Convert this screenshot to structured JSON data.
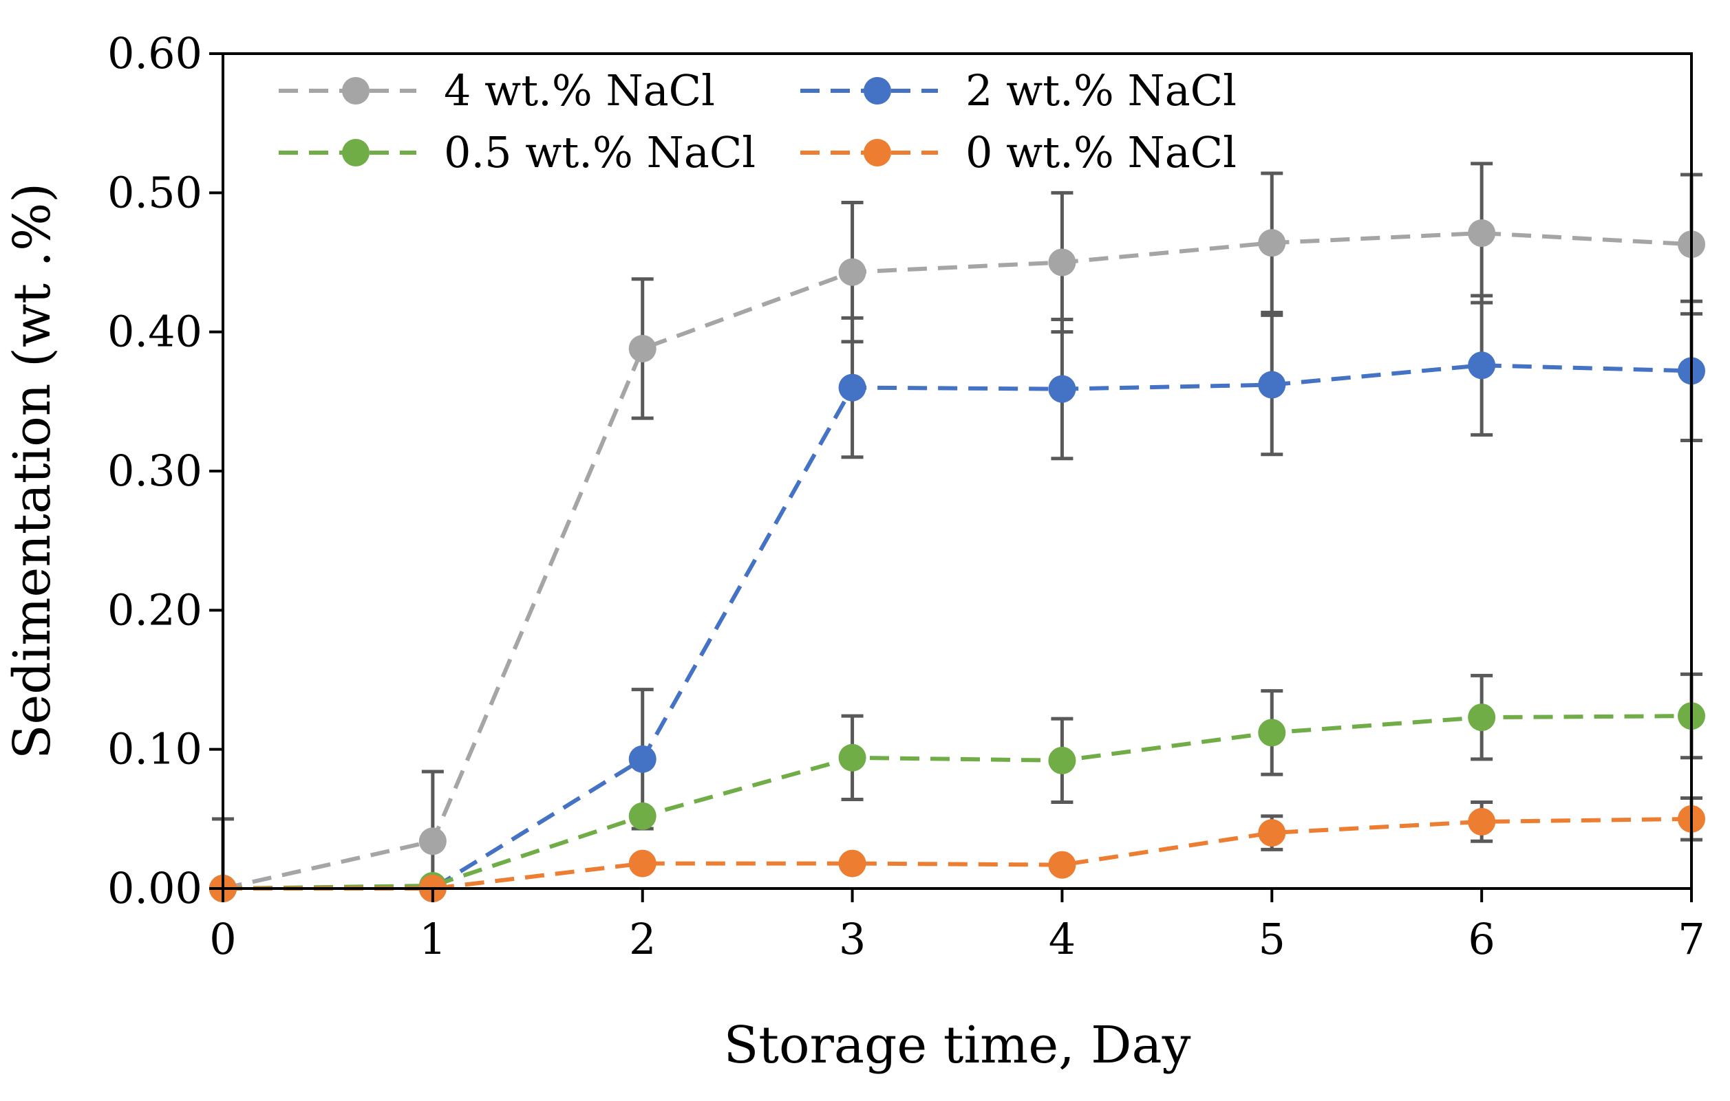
{
  "chart_data": {
    "type": "line",
    "title": "",
    "xlabel": "Storage time, Day",
    "ylabel": "Sedimentation (wt .%)",
    "xlim": [
      0,
      7
    ],
    "ylim": [
      0,
      0.6
    ],
    "x": [
      0,
      1,
      2,
      3,
      4,
      5,
      6,
      7
    ],
    "x_tick_labels": [
      "0",
      "1",
      "2",
      "3",
      "4",
      "5",
      "6",
      "7"
    ],
    "y_tick_values": [
      0,
      0.1,
      0.2,
      0.3,
      0.4,
      0.5,
      0.6
    ],
    "y_tick_labels": [
      "0.00",
      "0.10",
      "0.20",
      "0.30",
      "0.40",
      "0.50",
      "0.60"
    ],
    "grid": false,
    "legend_position": "top-left",
    "series": [
      {
        "name": "4 wt.% NaCl",
        "color": "#A5A5A5",
        "values": [
          0.0,
          0.034,
          0.388,
          0.443,
          0.45,
          0.464,
          0.471,
          0.463
        ],
        "error": [
          0.05,
          0.05,
          0.05,
          0.05,
          0.05,
          0.05,
          0.05,
          0.05
        ]
      },
      {
        "name": "2 wt.% NaCl",
        "color": "#4472C4",
        "values": [
          0.0,
          0.0,
          0.093,
          0.36,
          0.359,
          0.362,
          0.376,
          0.372
        ],
        "error": [
          0.0,
          0.0,
          0.05,
          0.05,
          0.05,
          0.05,
          0.05,
          0.05
        ]
      },
      {
        "name": "0.5 wt.% NaCl",
        "color": "#70AD47",
        "values": [
          0.0,
          0.002,
          0.052,
          0.094,
          0.092,
          0.112,
          0.123,
          0.124
        ],
        "error": [
          0.0,
          0.0,
          0.0,
          0.03,
          0.03,
          0.03,
          0.03,
          0.03
        ]
      },
      {
        "name": "0 wt.% NaCl",
        "color": "#ED7D31",
        "values": [
          0.0,
          0.0,
          0.018,
          0.018,
          0.017,
          0.04,
          0.048,
          0.05
        ],
        "error": [
          0.0,
          0.0,
          0.0,
          0.0,
          0.0,
          0.012,
          0.014,
          0.015
        ]
      }
    ]
  }
}
